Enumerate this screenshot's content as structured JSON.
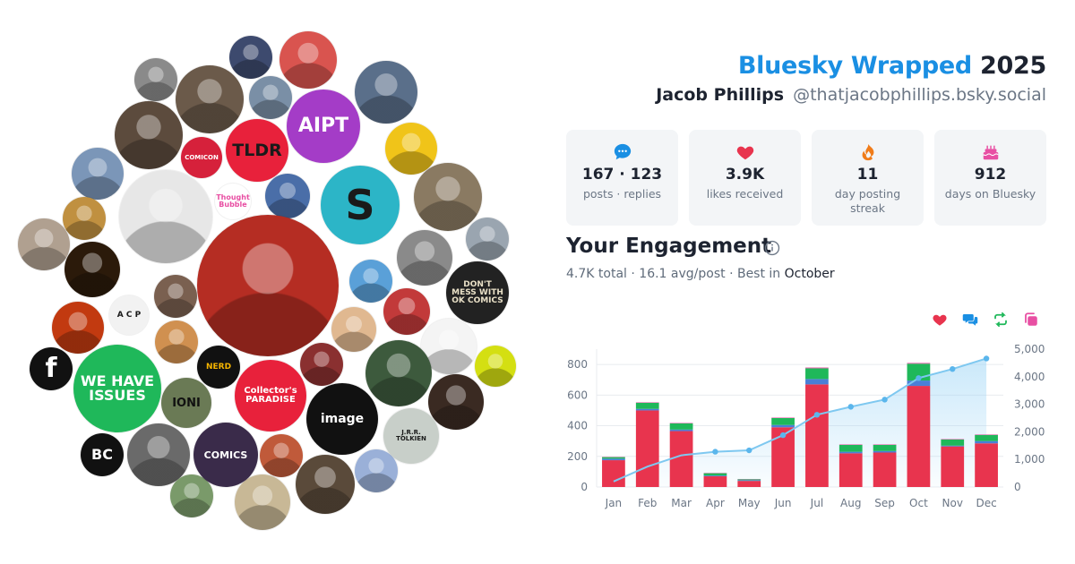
{
  "header": {
    "brand": "Bluesky Wrapped",
    "year": "2025",
    "display_name": "Jacob Phillips",
    "handle": "@thatjacobphillips.bsky.social"
  },
  "stats": [
    {
      "icon": "speech-bubble-icon",
      "value": "167 · 123",
      "label": "posts · replies",
      "color": "#1a8fe3"
    },
    {
      "icon": "heart-icon",
      "value": "3.9K",
      "label": "likes received",
      "color": "#e8344e"
    },
    {
      "icon": "flame-icon",
      "value": "11",
      "label": "day posting streak",
      "color": "#f07c1a"
    },
    {
      "icon": "cake-icon",
      "value": "912",
      "label": "days on Bluesky",
      "color": "#e84fa3"
    }
  ],
  "engagement": {
    "title": "Your Engagement",
    "total": "4.7K",
    "total_label": "total",
    "avg": "16.1",
    "avg_label": "avg/post",
    "best_label": "Best in",
    "best_month": "October"
  },
  "legend": [
    {
      "icon": "heart-icon",
      "color": "#e8344e"
    },
    {
      "icon": "reply-icon",
      "color": "#1a8fe3"
    },
    {
      "icon": "repost-icon",
      "color": "#1fb85a"
    },
    {
      "icon": "quote-icon",
      "color": "#e84fa3"
    }
  ],
  "avatars": [
    {
      "text": "AIPT",
      "bg": "#a43cc7",
      "fg": "#ffffff"
    },
    {
      "text": "TLDR",
      "bg": "#e8213b",
      "fg": "#1a1a1a"
    },
    {
      "text": "S",
      "bg": "#2cb5c7",
      "fg": "#1a1a1a"
    },
    {
      "text": "WE HAVE ISSUES",
      "bg": "#1fb85a",
      "fg": "#ffffff"
    },
    {
      "text": "Collector's PARADISE",
      "bg": "#e8213b",
      "fg": "#ffffff"
    },
    {
      "text": "image",
      "bg": "#111111",
      "fg": "#ffffff"
    },
    {
      "text": "DON'T MESS WITH OK COMICS",
      "bg": "#222222",
      "fg": "#e9e0c7"
    },
    {
      "text": "NERD",
      "bg": "#111111",
      "fg": "#f5b400"
    },
    {
      "text": "COMICS",
      "bg": "#3a2b4a",
      "fg": "#ffffff"
    },
    {
      "text": "f",
      "bg": "#111111",
      "fg": "#ffffff"
    },
    {
      "text": "BC",
      "bg": "#111111",
      "fg": "#ffffff"
    },
    {
      "text": "A C P",
      "bg": "#f2f2f2",
      "fg": "#1a1a1a"
    },
    {
      "text": "COMICON",
      "bg": "#d6213b",
      "fg": "#ffffff"
    },
    {
      "text": "J.R.R. TOLKIEN",
      "bg": "#c8cfc9",
      "fg": "#1a1a1a"
    },
    {
      "text": "Thought Bubble",
      "bg": "#ffffff",
      "fg": "#e84fa3"
    },
    {
      "text": "IONI",
      "bg": "#6a7a55",
      "fg": "#111111"
    }
  ],
  "chart_data": {
    "type": "bar",
    "stacked": true,
    "categories": [
      "Jan",
      "Feb",
      "Mar",
      "Apr",
      "May",
      "Jun",
      "Jul",
      "Aug",
      "Sep",
      "Oct",
      "Nov",
      "Dec"
    ],
    "series": [
      {
        "values": [
          175,
          500,
          365,
          70,
          40,
          390,
          670,
          220,
          225,
          660,
          265,
          285
        ],
        "color": "#e8344e"
      },
      {
        "values": [
          10,
          10,
          10,
          5,
          5,
          15,
          35,
          10,
          10,
          35,
          5,
          15
        ],
        "color": "#4a7fd6"
      },
      {
        "values": [
          10,
          40,
          40,
          15,
          5,
          45,
          70,
          45,
          40,
          110,
          40,
          40
        ],
        "color": "#1fb85a"
      },
      {
        "values": [
          2,
          3,
          3,
          2,
          2,
          3,
          5,
          3,
          3,
          5,
          3,
          3
        ],
        "color": "#e84fa3"
      }
    ],
    "cumulative": {
      "values": [
        200,
        740,
        1150,
        1280,
        1330,
        1880,
        2620,
        2910,
        3170,
        3950,
        4280,
        4660
      ],
      "color": "#7ec8f0"
    },
    "ylim_left": [
      0,
      900
    ],
    "yticks_left": [
      0,
      200,
      400,
      600,
      800
    ],
    "ylim_right": [
      0,
      5000
    ],
    "yticks_right": [
      "0",
      "1,000",
      "2,000",
      "3,000",
      "4,000",
      "5,000"
    ],
    "grid": true
  }
}
